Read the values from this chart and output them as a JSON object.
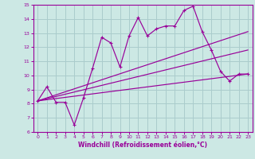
{
  "bg_color": "#cce8e4",
  "line_color": "#990099",
  "grid_color": "#aacccc",
  "xlabel": "Windchill (Refroidissement éolien,°C)",
  "xlabel_color": "#990099",
  "tick_color": "#990099",
  "xlim": [
    -0.5,
    23.5
  ],
  "ylim": [
    6,
    15
  ],
  "xticks": [
    0,
    1,
    2,
    3,
    4,
    5,
    6,
    7,
    8,
    9,
    10,
    11,
    12,
    13,
    14,
    15,
    16,
    17,
    18,
    19,
    20,
    21,
    22,
    23
  ],
  "yticks": [
    6,
    7,
    8,
    9,
    10,
    11,
    12,
    13,
    14,
    15
  ],
  "line1_x": [
    0,
    1,
    2,
    3,
    4,
    5,
    6,
    7,
    8,
    9,
    10,
    11,
    12,
    13,
    14,
    15,
    16,
    17,
    18,
    19,
    20,
    21,
    22,
    23
  ],
  "line1_y": [
    8.2,
    9.2,
    8.1,
    8.1,
    6.5,
    8.4,
    10.5,
    12.7,
    12.3,
    10.6,
    12.8,
    14.1,
    12.8,
    13.3,
    13.5,
    13.5,
    14.6,
    14.9,
    13.1,
    11.8,
    10.3,
    9.6,
    10.1,
    10.1
  ],
  "line2_x": [
    0,
    23
  ],
  "line2_y": [
    8.2,
    10.1
  ],
  "line3_x": [
    0,
    23
  ],
  "line3_y": [
    8.2,
    13.1
  ],
  "line4_x": [
    0,
    23
  ],
  "line4_y": [
    8.2,
    11.8
  ]
}
